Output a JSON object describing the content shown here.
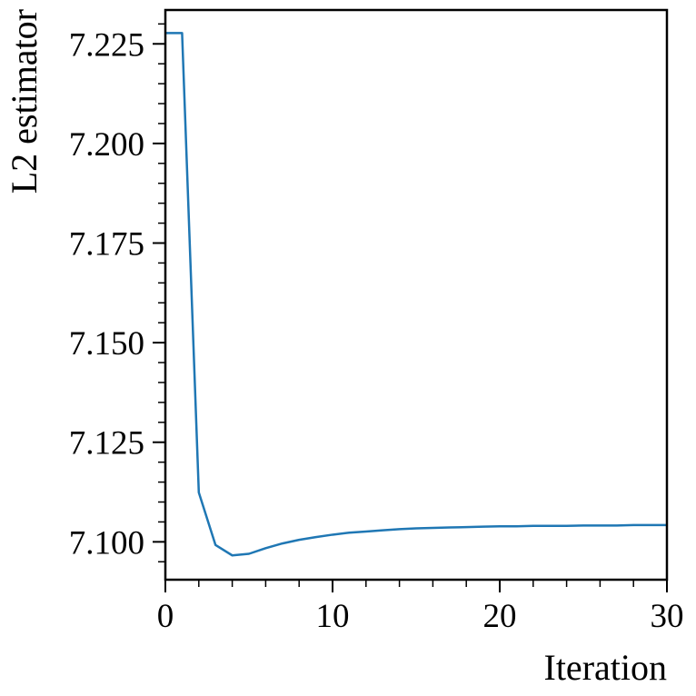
{
  "chart_data": {
    "type": "line",
    "title": "",
    "xlabel": "Iteration",
    "ylabel": "L2 estimator",
    "xlim": [
      0,
      30
    ],
    "ylim": [
      7.0905,
      7.2335
    ],
    "xticks": [
      0,
      10,
      20,
      30
    ],
    "xtick_labels": [
      "0",
      "10",
      "20",
      "30"
    ],
    "yticks": [
      7.1,
      7.125,
      7.15,
      7.175,
      7.2,
      7.225
    ],
    "ytick_labels": [
      "7.100",
      "7.125",
      "7.150",
      "7.175",
      "7.200",
      "7.225"
    ],
    "grid": false,
    "legend": "none",
    "series": [
      {
        "color": "#1f77b4",
        "x": [
          0,
          1,
          2,
          3,
          4,
          5,
          6,
          7,
          8,
          9,
          10,
          11,
          12,
          13,
          14,
          15,
          16,
          17,
          18,
          19,
          20,
          21,
          22,
          23,
          24,
          25,
          26,
          27,
          28,
          29,
          30
        ],
        "y": [
          7.2277,
          7.2277,
          7.1124,
          7.0992,
          7.0966,
          7.097,
          7.0984,
          7.0996,
          7.1005,
          7.1012,
          7.1018,
          7.1023,
          7.1026,
          7.1029,
          7.1032,
          7.1034,
          7.1035,
          7.1036,
          7.1037,
          7.1038,
          7.1039,
          7.1039,
          7.104,
          7.104,
          7.104,
          7.1041,
          7.1041,
          7.1041,
          7.1042,
          7.1042,
          7.1042
        ]
      }
    ]
  }
}
